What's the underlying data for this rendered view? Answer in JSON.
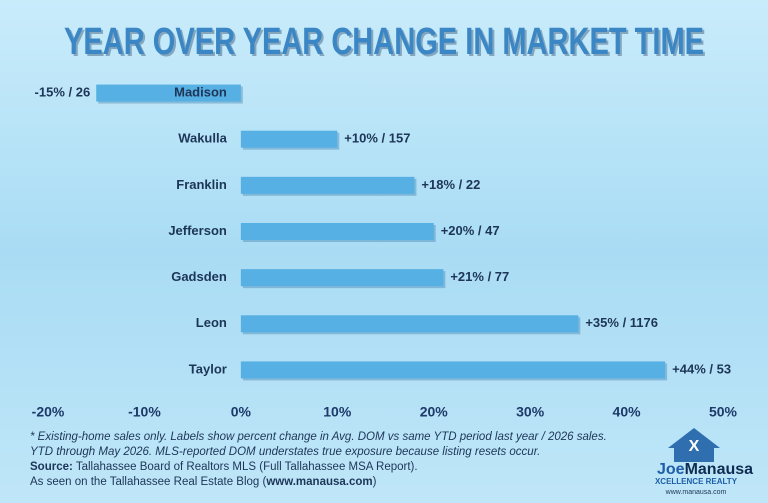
{
  "chart_data": {
    "type": "hbar",
    "title": "YEAR OVER YEAR CHANGE IN MARKET TIME",
    "categories": [
      "Madison",
      "Wakulla",
      "Franklin",
      "Jefferson",
      "Gadsden",
      "Leon",
      "Taylor"
    ],
    "values": [
      -15,
      10,
      18,
      20,
      21,
      35,
      44
    ],
    "value_labels": [
      "-15% / 26",
      "+10% / 157",
      "+18% / 22",
      "+20% / 47",
      "+21% / 77",
      "+35% / 1176",
      "+44% / 53"
    ],
    "color": "#57b0e3",
    "xlim": [
      -20,
      50
    ],
    "xticks": [
      {
        "value": -20,
        "label": "-20%"
      },
      {
        "value": -10,
        "label": "-10%"
      },
      {
        "value": 0,
        "label": "0%"
      },
      {
        "value": 10,
        "label": "10%"
      },
      {
        "value": 20,
        "label": "20%"
      },
      {
        "value": 30,
        "label": "30%"
      },
      {
        "value": 40,
        "label": "40%"
      },
      {
        "value": 50,
        "label": "50%"
      }
    ]
  },
  "notes": [
    "* Existing-home sales only. Labels show percent change in Avg. DOM vs same YTD period last year / 2026 sales.",
    "YTD through May 2026. MLS-reported DOM understates true exposure because listing resets occur."
  ],
  "source": {
    "label": "Source:",
    "text": " Tallahassee Board of Realtors MLS (Full Tallahassee MSA Report)."
  },
  "credit": {
    "before": "As seen on the Tallahassee Real Estate Blog (",
    "link": "www.manausa.com",
    "after": ")"
  },
  "logo": {
    "brand_first": "Joe",
    "brand_second": "Manausa",
    "tagline": "XCELLENCE REALTY",
    "url": "www.manausa.com"
  }
}
